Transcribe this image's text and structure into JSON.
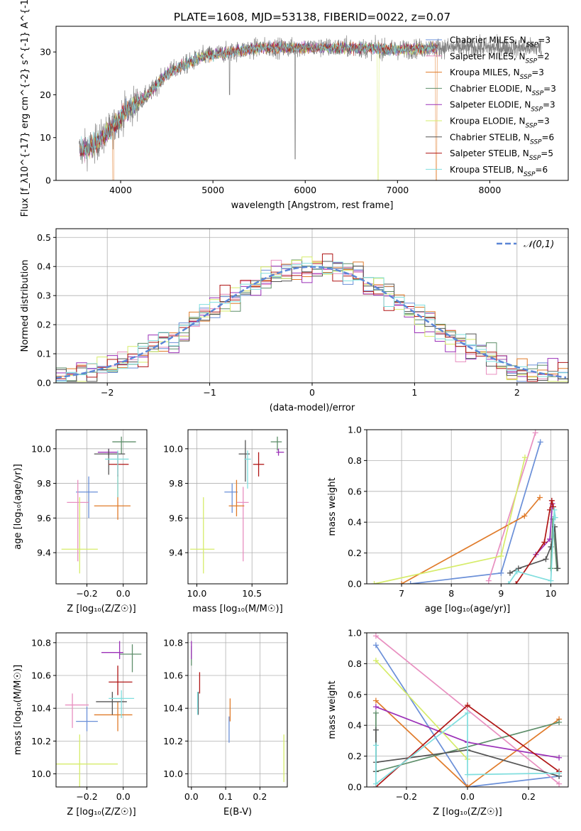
{
  "figure": {
    "title": "PLATE=1608, MJD=53138, FIBERID=0022, z=0.07"
  },
  "models": [
    {
      "label": "Chabrier MILES, N_{SSP}=3",
      "color": "#6a8fd8"
    },
    {
      "label": "Salpeter MILES, N_{SSP}=2",
      "color": "#e88fc0"
    },
    {
      "label": "Kroupa MILES, N_{SSP}=3",
      "color": "#e07b2a"
    },
    {
      "label": "Chabrier ELODIE, N_{SSP}=3",
      "color": "#5e8e6a"
    },
    {
      "label": "Salpeter ELODIE, N_{SSP}=3",
      "color": "#9b30b8"
    },
    {
      "label": "Kroupa ELODIE, N_{SSP}=3",
      "color": "#d6ec6a"
    },
    {
      "label": "Chabrier STELIB, N_{SSP}=6",
      "color": "#555555"
    },
    {
      "label": "Salpeter STELIB, N_{SSP}=5",
      "color": "#b01616"
    },
    {
      "label": "Kroupa STELIB, N_{SSP}=6",
      "color": "#80dede"
    }
  ],
  "chart_data": [
    {
      "id": "spectrum",
      "type": "line",
      "xlabel": "wavelength [Angstrom, rest frame]",
      "ylabel": "Flux [f_λ10^{-17} erg cm^{-2} s^{-1} A^{-1}]",
      "xlim": [
        3300,
        8850
      ],
      "ylim": [
        0,
        36
      ],
      "xticks": [
        4000,
        5000,
        6000,
        7000,
        8000
      ],
      "yticks": [
        0,
        10,
        20,
        30
      ],
      "data_color": "#808080",
      "continuum": {
        "x": [
          3550,
          3700,
          3900,
          4000,
          4100,
          4300,
          4500,
          4700,
          4900,
          5200,
          5500,
          6000,
          6500,
          7000,
          7400
        ],
        "y": [
          7,
          8,
          12,
          15,
          17,
          20,
          25,
          27,
          29,
          30,
          31,
          31,
          31,
          30.5,
          31
        ]
      },
      "absorption_features": [
        {
          "x": 5890,
          "depth_to": 5
        },
        {
          "x": 5180,
          "depth_to": 20
        }
      ],
      "model_cutoffs": [
        {
          "model": 2,
          "x": 7420
        },
        {
          "model": 5,
          "x": 6790
        },
        {
          "model": 2,
          "x": 3920
        }
      ],
      "grid": false,
      "legend": "upper right"
    },
    {
      "id": "residuals",
      "type": "step",
      "xlabel": "(data-model)/error",
      "ylabel": "Normed distribution",
      "xlim": [
        -2.5,
        2.5
      ],
      "ylim": [
        0,
        0.53
      ],
      "xticks": [
        -2,
        -1,
        0,
        1,
        2
      ],
      "yticks": [
        0.0,
        0.1,
        0.2,
        0.3,
        0.4,
        0.5
      ],
      "bin_width": 0.1,
      "grid": true,
      "gaussian_label": "𝒩(0,1)",
      "gaussian_color": "#5b86d6",
      "legend": "upper right"
    },
    {
      "id": "z-age",
      "type": "errorbar",
      "xlabel": "Z [log₁₀(Z/Z☉)]",
      "ylabel": "age  [log₁₀(age/yr)]",
      "xlim": [
        -0.37,
        0.13
      ],
      "ylim": [
        9.22,
        10.11
      ],
      "xticks": [
        -0.2,
        0.0
      ],
      "yticks": [
        9.4,
        9.6,
        9.8,
        10.0
      ],
      "grid": true,
      "points": [
        {
          "model": 0,
          "x": -0.19,
          "y": 9.75,
          "xerr": [
            0.07,
            0.05
          ],
          "yerr": [
            0.15,
            0.09
          ]
        },
        {
          "model": 1,
          "x": -0.25,
          "y": 9.69,
          "xerr": [
            0.06,
            0.06
          ],
          "yerr": [
            0.34,
            0.13
          ]
        },
        {
          "model": 2,
          "x": -0.03,
          "y": 9.67,
          "xerr": [
            0.13,
            0.07
          ],
          "yerr": [
            0.08,
            0.18
          ]
        },
        {
          "model": 3,
          "x": -0.01,
          "y": 10.04,
          "xerr": [
            0.05,
            0.08
          ],
          "yerr": [
            0.07,
            0.03
          ]
        },
        {
          "model": 4,
          "x": -0.08,
          "y": 9.98,
          "xerr": [
            0.06,
            0.05
          ],
          "yerr": [
            0.02,
            0.02
          ]
        },
        {
          "model": 5,
          "x": -0.24,
          "y": 9.42,
          "xerr": [
            0.1,
            0.1
          ],
          "yerr": [
            0.14,
            0.3
          ]
        },
        {
          "model": 6,
          "x": -0.08,
          "y": 9.97,
          "xerr": [
            0.08,
            0.09
          ],
          "yerr": [
            0.12,
            0.03
          ]
        },
        {
          "model": 7,
          "x": -0.03,
          "y": 9.91,
          "xerr": [
            0.05,
            0.06
          ],
          "yerr": [
            0.07,
            0.07
          ]
        },
        {
          "model": 8,
          "x": -0.03,
          "y": 9.94,
          "xerr": [
            0.07,
            0.06
          ],
          "yerr": [
            0.22,
            0.05
          ]
        }
      ]
    },
    {
      "id": "mass-age",
      "type": "errorbar",
      "xlabel": "mass [log₁₀(M/M☉)]",
      "ylabel": "",
      "xlim": [
        9.92,
        10.82
      ],
      "ylim": [
        9.22,
        10.11
      ],
      "xticks": [
        10.0,
        10.5
      ],
      "yticks": [
        9.4,
        9.6,
        9.8,
        10.0
      ],
      "grid": true,
      "points": [
        {
          "model": 0,
          "x": 10.32,
          "y": 9.75,
          "xerr": [
            0.07,
            0.05
          ],
          "yerr": [
            0.12,
            0.05
          ]
        },
        {
          "model": 1,
          "x": 10.42,
          "y": 9.69,
          "xerr": [
            0.06,
            0.05
          ],
          "yerr": [
            0.34,
            0.09
          ]
        },
        {
          "model": 2,
          "x": 10.36,
          "y": 9.67,
          "xerr": [
            0.07,
            0.07
          ],
          "yerr": [
            0.06,
            0.15
          ]
        },
        {
          "model": 3,
          "x": 10.73,
          "y": 10.04,
          "xerr": [
            0.06,
            0.04
          ],
          "yerr": [
            0.05,
            0.03
          ]
        },
        {
          "model": 4,
          "x": 10.74,
          "y": 9.98,
          "xerr": [
            0.02,
            0.05
          ],
          "yerr": [
            0.02,
            0.02
          ]
        },
        {
          "model": 5,
          "x": 10.06,
          "y": 9.42,
          "xerr": [
            0.12,
            0.1
          ],
          "yerr": [
            0.14,
            0.3
          ]
        },
        {
          "model": 6,
          "x": 10.44,
          "y": 9.97,
          "xerr": [
            0.06,
            0.04
          ],
          "yerr": [
            0.16,
            0.08
          ]
        },
        {
          "model": 7,
          "x": 10.56,
          "y": 9.91,
          "xerr": [
            0.05,
            0.05
          ],
          "yerr": [
            0.07,
            0.07
          ]
        },
        {
          "model": 8,
          "x": 10.46,
          "y": 9.94,
          "xerr": [
            0.03,
            0.03
          ],
          "yerr": [
            0.17,
            0.05
          ]
        }
      ]
    },
    {
      "id": "age-weight",
      "type": "line",
      "xlabel": "age  [log₁₀(age/yr)]",
      "ylabel": "mass weight",
      "xlim": [
        6.3,
        10.35
      ],
      "ylim": [
        0,
        1
      ],
      "xticks": [
        7,
        8,
        9,
        10
      ],
      "yticks": [
        0.0,
        0.2,
        0.4,
        0.6,
        0.8,
        1.0
      ],
      "grid": true,
      "series": [
        {
          "model": 0,
          "x": [
            7.18,
            9.0,
            9.79
          ],
          "y": [
            0.0,
            0.07,
            0.92
          ]
        },
        {
          "model": 1,
          "x": [
            8.75,
            9.69
          ],
          "y": [
            0.02,
            0.98
          ]
        },
        {
          "model": 2,
          "x": [
            7.0,
            9.47,
            9.78
          ],
          "y": [
            0.0,
            0.44,
            0.56
          ]
        },
        {
          "model": 3,
          "x": [
            10.0,
            10.04,
            10.12
          ],
          "y": [
            0.1,
            0.42,
            0.1
          ]
        },
        {
          "model": 4,
          "x": [
            9.7,
            9.98,
            10.03
          ],
          "y": [
            0.19,
            0.29,
            0.52
          ]
        },
        {
          "model": 5,
          "x": [
            6.45,
            9.0,
            9.48
          ],
          "y": [
            0.0,
            0.18,
            0.82
          ]
        },
        {
          "model": 6,
          "x": [
            9.18,
            9.35,
            9.9,
            10.0,
            10.08,
            10.14
          ],
          "y": [
            0.07,
            0.1,
            0.16,
            0.24,
            0.37,
            0.1
          ]
        },
        {
          "model": 7,
          "x": [
            9.3,
            9.87,
            9.98,
            10.02,
            10.05
          ],
          "y": [
            0.0,
            0.27,
            0.48,
            0.54,
            0.5
          ]
        },
        {
          "model": 8,
          "x": [
            9.15,
            9.32,
            10.0,
            10.07,
            10.09
          ],
          "y": [
            0.0,
            0.08,
            0.02,
            0.48,
            0.43
          ]
        }
      ]
    },
    {
      "id": "z-mass",
      "type": "errorbar",
      "xlabel": "Z [log₁₀(Z/Z☉)]",
      "ylabel": "mass [log₁₀(M/M☉)]",
      "xlim": [
        -0.37,
        0.13
      ],
      "ylim": [
        9.92,
        10.86
      ],
      "xticks": [
        -0.2,
        0.0
      ],
      "yticks": [
        10.0,
        10.2,
        10.4,
        10.6,
        10.8
      ],
      "grid": true,
      "points": [
        {
          "model": 0,
          "x": -0.2,
          "y": 10.32,
          "xerr": [
            0.06,
            0.06
          ],
          "yerr": [
            0.06,
            0.09
          ]
        },
        {
          "model": 1,
          "x": -0.28,
          "y": 10.42,
          "xerr": [
            0.04,
            0.09
          ],
          "yerr": [
            0.14,
            0.07
          ]
        },
        {
          "model": 2,
          "x": -0.03,
          "y": 10.36,
          "xerr": [
            0.13,
            0.08
          ],
          "yerr": [
            0.1,
            0.08
          ]
        },
        {
          "model": 3,
          "x": 0.05,
          "y": 10.73,
          "xerr": [
            0.07,
            0.05
          ],
          "yerr": [
            0.11,
            0.06
          ]
        },
        {
          "model": 4,
          "x": -0.02,
          "y": 10.74,
          "xerr": [
            0.1,
            0.02
          ],
          "yerr": [
            0.04,
            0.07
          ]
        },
        {
          "model": 5,
          "x": -0.24,
          "y": 10.06,
          "xerr": [
            0.13,
            0.21
          ],
          "yerr": [
            0.15,
            0.18
          ]
        },
        {
          "model": 6,
          "x": -0.06,
          "y": 10.44,
          "xerr": [
            0.09,
            0.08
          ],
          "yerr": [
            0.08,
            0.06
          ]
        },
        {
          "model": 7,
          "x": -0.03,
          "y": 10.56,
          "xerr": [
            0.05,
            0.08
          ],
          "yerr": [
            0.08,
            0.1
          ]
        },
        {
          "model": 8,
          "x": -0.01,
          "y": 10.46,
          "xerr": [
            0.07,
            0.07
          ],
          "yerr": [
            0.12,
            0.05
          ]
        }
      ]
    },
    {
      "id": "ebv-mass",
      "type": "errorbar",
      "xlabel": "E(B-V)",
      "ylabel": "",
      "xlim": [
        -0.01,
        0.28
      ],
      "ylim": [
        9.92,
        10.86
      ],
      "xticks": [
        0.0,
        0.1,
        0.2
      ],
      "yticks": [
        10.0,
        10.2,
        10.4,
        10.6,
        10.8
      ],
      "grid": true,
      "points": [
        {
          "model": 0,
          "x": 0.11,
          "y": 10.29,
          "xerr": [
            0,
            0
          ],
          "yerr": [
            0.1,
            0.06
          ]
        },
        {
          "model": 1,
          "x": 0.02,
          "y": 10.42,
          "xerr": [
            0,
            0
          ],
          "yerr": [
            0.05,
            0.06
          ]
        },
        {
          "model": 2,
          "x": 0.113,
          "y": 10.36,
          "xerr": [
            0,
            0
          ],
          "yerr": [
            0.04,
            0.1
          ]
        },
        {
          "model": 3,
          "x": 0.0,
          "y": 10.71,
          "xerr": [
            0,
            0
          ],
          "yerr": [
            0.05,
            0.07
          ]
        },
        {
          "model": 4,
          "x": 0.0,
          "y": 10.76,
          "xerr": [
            0,
            0
          ],
          "yerr": [
            0.06,
            0.05
          ]
        },
        {
          "model": 5,
          "x": 0.27,
          "y": 10.09,
          "xerr": [
            0,
            0
          ],
          "yerr": [
            0.14,
            0.15
          ]
        },
        {
          "model": 6,
          "x": 0.02,
          "y": 10.43,
          "xerr": [
            0,
            0
          ],
          "yerr": [
            0.07,
            0.07
          ]
        },
        {
          "model": 7,
          "x": 0.024,
          "y": 10.56,
          "xerr": [
            0,
            0
          ],
          "yerr": [
            0.07,
            0.06
          ]
        },
        {
          "model": 8,
          "x": 0.018,
          "y": 10.44,
          "xerr": [
            0,
            0
          ],
          "yerr": [
            0.08,
            0.06
          ]
        }
      ]
    },
    {
      "id": "z-weight",
      "type": "line",
      "xlabel": "Z [log₁₀(Z/Z☉)]",
      "ylabel": "mass weight",
      "xlim": [
        -0.33,
        0.33
      ],
      "ylim": [
        0,
        1
      ],
      "xticks": [
        -0.2,
        0.0,
        0.2
      ],
      "yticks": [
        0.0,
        0.2,
        0.4,
        0.6,
        0.8,
        1.0
      ],
      "grid": true,
      "series": [
        {
          "model": 0,
          "x": [
            -0.3,
            0.0,
            0.3
          ],
          "y": [
            0.92,
            0.0,
            0.07
          ]
        },
        {
          "model": 1,
          "x": [
            -0.3,
            0.3
          ],
          "y": [
            0.98,
            0.02
          ]
        },
        {
          "model": 2,
          "x": [
            -0.3,
            0.0,
            0.3
          ],
          "y": [
            0.56,
            0.0,
            0.44
          ]
        },
        {
          "model": 3,
          "x": [
            -0.3,
            -0.3,
            0.3
          ],
          "y": [
            0.48,
            0.1,
            0.42
          ]
        },
        {
          "model": 4,
          "x": [
            -0.3,
            0.0,
            0.3
          ],
          "y": [
            0.52,
            0.29,
            0.19
          ]
        },
        {
          "model": 5,
          "x": [
            -0.3,
            0.0
          ],
          "y": [
            0.82,
            0.18
          ]
        },
        {
          "model": 6,
          "x": [
            -0.3,
            -0.3,
            -0.3,
            0.0,
            0.3
          ],
          "y": [
            0.37,
            0.1,
            0.16,
            0.24,
            0.07
          ]
        },
        {
          "model": 7,
          "x": [
            -0.3,
            0.0,
            0.3
          ],
          "y": [
            0.0,
            0.53,
            0.1
          ]
        },
        {
          "model": 8,
          "x": [
            -0.3,
            -0.3,
            0.0,
            0.0,
            0.3
          ],
          "y": [
            0.27,
            0.02,
            0.48,
            0.08,
            0.09
          ]
        }
      ]
    }
  ]
}
